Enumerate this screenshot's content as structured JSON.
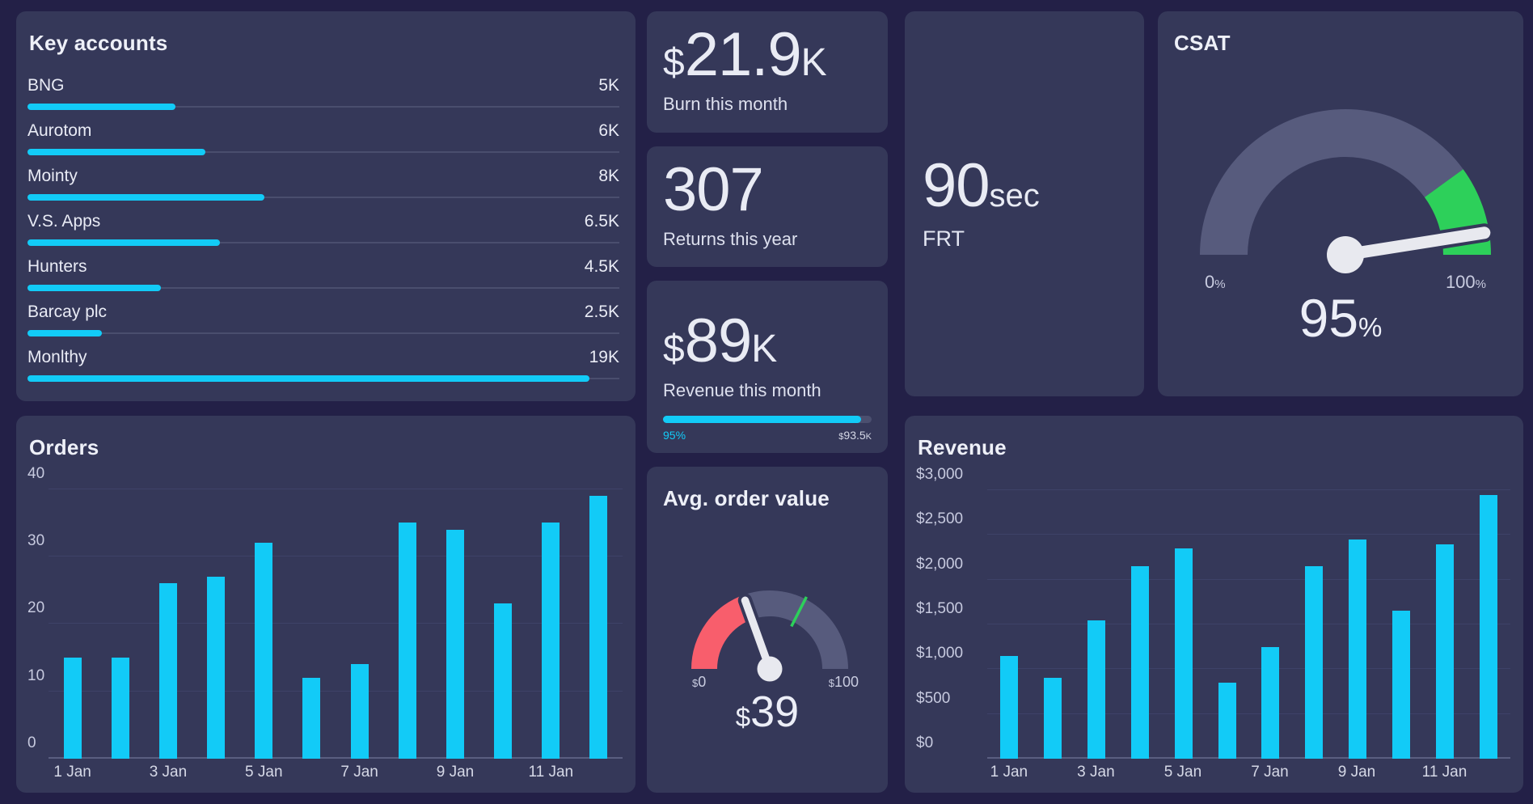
{
  "colors": {
    "page_bg": "#232047",
    "card_bg": "#353859",
    "cyan": "#12CBF7",
    "red": "#F85E6C",
    "green": "#2DD05A",
    "slate": "#575B7D",
    "track": "#4B4F6F",
    "grid": "#3E4268",
    "axis_line": "#5A5E80",
    "text_strong": "#EEF0F8",
    "text_label": "#DDE0EE",
    "axis_label": "#C7CADF",
    "needle": "#E8E9EF"
  },
  "stats": {
    "burn": {
      "currency": "$",
      "number": "21.9",
      "suffix": "K",
      "label": "Burn this month"
    },
    "returns": {
      "number": "307",
      "label": "Returns this year"
    },
    "revenue_month": {
      "currency": "$",
      "number": "89",
      "suffix": "K",
      "label": "Revenue this month",
      "progress": {
        "percent": 95,
        "left_label": "95%",
        "right_currency": "$",
        "right_number": "93.5",
        "right_suffix": "K"
      }
    },
    "frt": {
      "number": "90",
      "unit": "sec",
      "label": "FRT"
    }
  },
  "chart_data": [
    {
      "type": "bar",
      "orientation": "horizontal",
      "title": "Key accounts",
      "categories": [
        "BNG",
        "Aurotom",
        "Mointy",
        "V.S. Apps",
        "Hunters",
        "Barcay plc",
        "Monlthy"
      ],
      "values": [
        5000,
        6000,
        8000,
        6500,
        4500,
        2500,
        19000
      ],
      "value_labels": [
        "5K",
        "6K",
        "8K",
        "6.5K",
        "4.5K",
        "2.5K",
        "19K"
      ],
      "xlim": [
        0,
        20000
      ],
      "bar_color": "#12CBF7"
    },
    {
      "type": "bar",
      "title": "Orders",
      "categories": [
        "1 Jan",
        "2 Jan",
        "3 Jan",
        "4 Jan",
        "5 Jan",
        "6 Jan",
        "7 Jan",
        "8 Jan",
        "9 Jan",
        "10 Jan",
        "11 Jan",
        "12 Jan"
      ],
      "values": [
        15,
        15,
        26,
        27,
        32,
        12,
        14,
        35,
        34,
        23,
        35,
        39
      ],
      "ylim": [
        0,
        42.5
      ],
      "yticks": [
        0,
        10,
        20,
        30,
        40
      ],
      "ytick_labels": [
        "0",
        "10",
        "20",
        "30",
        "40"
      ],
      "xticks_shown": [
        "1 Jan",
        "3 Jan",
        "5 Jan",
        "7 Jan",
        "9 Jan",
        "11 Jan"
      ],
      "grid": true,
      "legend": false,
      "bar_color": "#12CBF7"
    },
    {
      "type": "bar",
      "title": "Revenue",
      "categories": [
        "1 Jan",
        "2 Jan",
        "3 Jan",
        "4 Jan",
        "5 Jan",
        "6 Jan",
        "7 Jan",
        "8 Jan",
        "9 Jan",
        "10 Jan",
        "11 Jan",
        "12 Jan"
      ],
      "values": [
        1150,
        900,
        1550,
        2150,
        2350,
        850,
        1250,
        2150,
        2450,
        1650,
        2400,
        2950
      ],
      "ylim": [
        0,
        3200
      ],
      "yticks": [
        0,
        500,
        1000,
        1500,
        2000,
        2500,
        3000
      ],
      "ytick_labels": [
        "$0",
        "$500",
        "$1,000",
        "$1,500",
        "$2,000",
        "$2,500",
        "$3,000"
      ],
      "xticks_shown": [
        "1 Jan",
        "3 Jan",
        "5 Jan",
        "7 Jan",
        "9 Jan",
        "11 Jan"
      ],
      "grid": true,
      "legend": false,
      "bar_color": "#12CBF7"
    },
    {
      "type": "gauge",
      "title": "Avg. order value",
      "value": 39,
      "range": [
        0,
        100
      ],
      "segments": [
        {
          "from": 0,
          "to": 40,
          "color": "red"
        },
        {
          "from": 40,
          "to": 100,
          "color": "slate"
        }
      ],
      "tick": {
        "value": 65,
        "color": "green"
      },
      "min_label": {
        "currency": "$",
        "text": "0"
      },
      "max_label": {
        "currency": "$",
        "text": "100"
      },
      "value_label": {
        "currency": "$",
        "text": "39"
      }
    },
    {
      "type": "gauge",
      "title": "CSAT",
      "value": 95,
      "range": [
        0,
        100
      ],
      "segments": [
        {
          "from": 0,
          "to": 80,
          "color": "slate"
        },
        {
          "from": 80,
          "to": 100,
          "color": "green"
        }
      ],
      "min_label": {
        "text": "0",
        "unit": "%"
      },
      "max_label": {
        "text": "100",
        "unit": "%"
      },
      "value_label": {
        "text": "95",
        "unit": "%"
      }
    }
  ]
}
